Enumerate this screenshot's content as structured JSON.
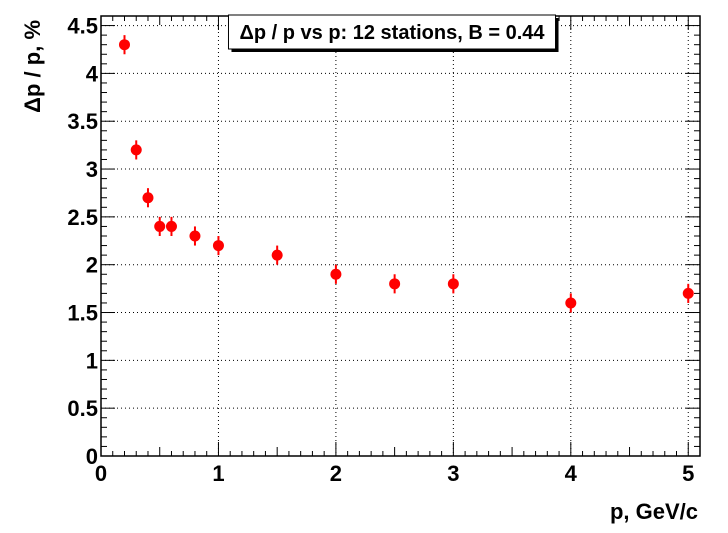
{
  "chart_data": {
    "type": "scatter",
    "title": "Δp / p vs p: 12 stations, B = 0.44",
    "xlabel": "p, GeV/c",
    "ylabel": "Δp / p, %",
    "xlim": [
      0,
      5.1
    ],
    "ylim": [
      0,
      4.6
    ],
    "x_ticks": [
      "0",
      "1",
      "2",
      "3",
      "4",
      "5"
    ],
    "y_ticks": [
      "0",
      "0.5",
      "1",
      "1.5",
      "2",
      "2.5",
      "3",
      "3.5",
      "4",
      "4.5"
    ],
    "grid": true,
    "marker_color": "#ff0000",
    "series": [
      {
        "x": [
          0.2,
          0.3,
          0.4,
          0.5,
          0.6,
          0.8,
          1.0,
          1.5,
          2.0,
          2.5,
          3.0,
          4.0,
          5.0
        ],
        "y": [
          4.3,
          3.2,
          2.7,
          2.4,
          2.4,
          2.3,
          2.2,
          2.1,
          1.9,
          1.8,
          1.8,
          1.6,
          1.7
        ],
        "yerr": [
          0.1,
          0.1,
          0.1,
          0.1,
          0.1,
          0.1,
          0.1,
          0.1,
          0.1,
          0.1,
          0.1,
          0.1,
          0.1
        ]
      }
    ]
  }
}
